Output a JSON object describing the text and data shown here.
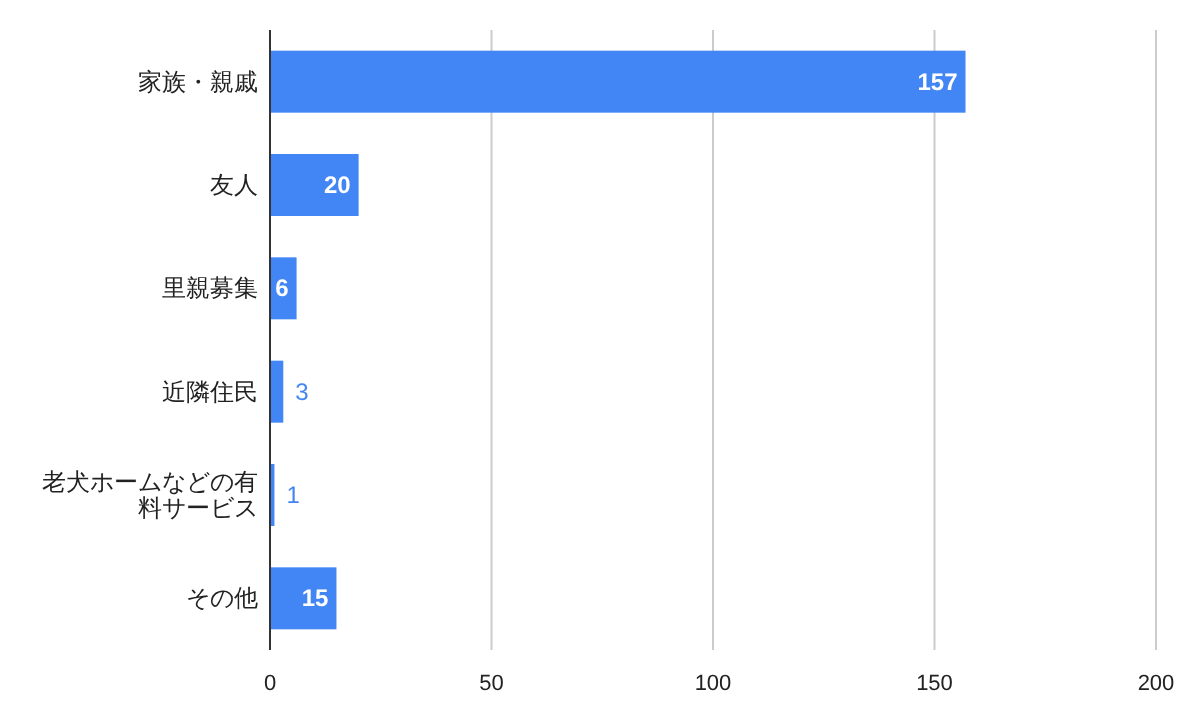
{
  "chart_data": {
    "type": "bar",
    "orientation": "horizontal",
    "categories": [
      "家族・親戚",
      "友人",
      "里親募集",
      "近隣住民",
      "老犬ホームなどの有料サービス",
      "その他"
    ],
    "values": [
      157,
      20,
      6,
      3,
      1,
      15
    ],
    "color": "#4285f4",
    "xlim": [
      0,
      200
    ],
    "xticks": [
      0,
      50,
      100,
      150,
      200
    ],
    "grid": "x",
    "data_labels": true
  }
}
